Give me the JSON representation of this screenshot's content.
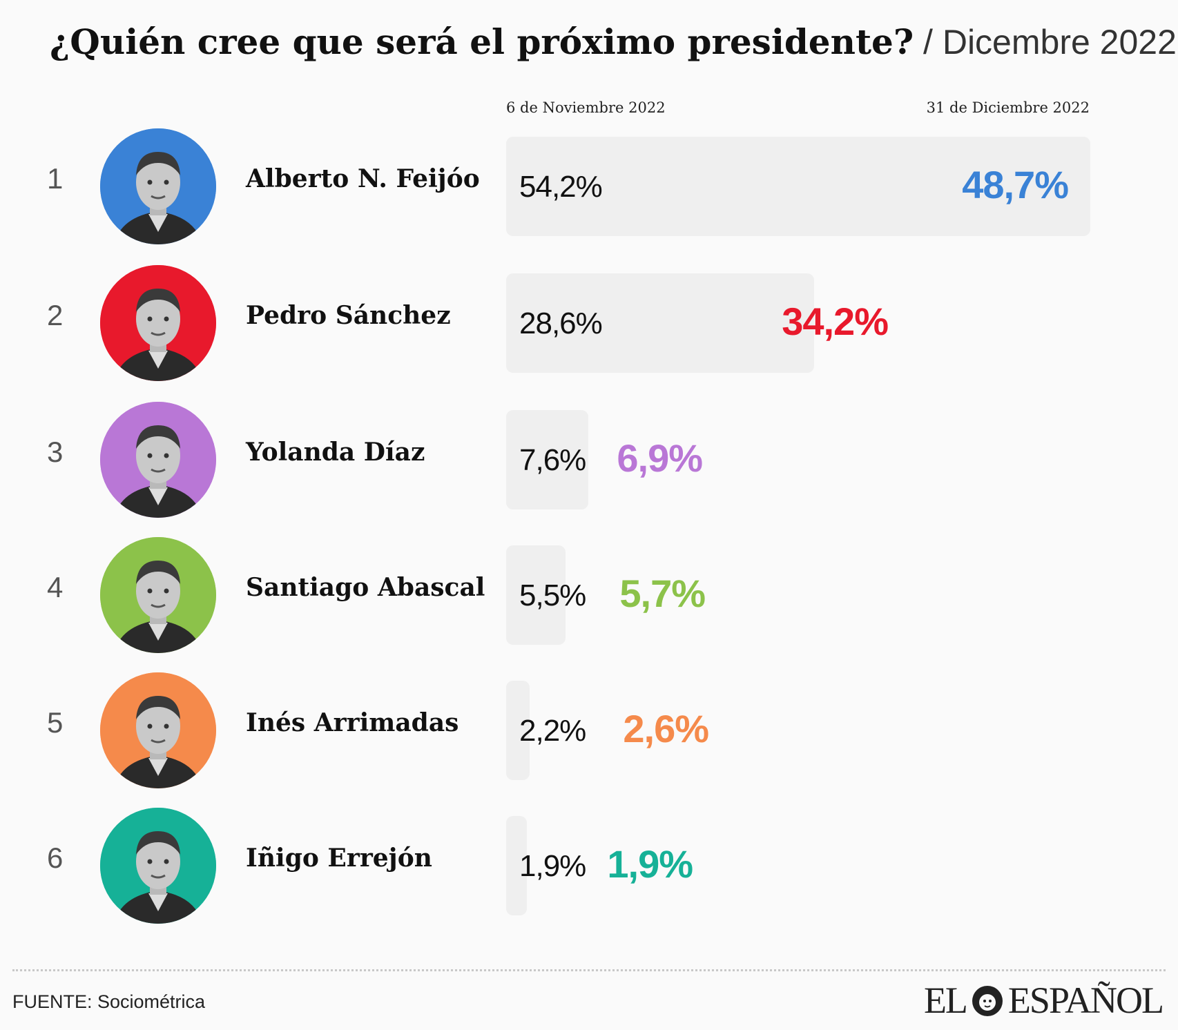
{
  "title": {
    "main": "¿Quién cree que será el próximo presidente?",
    "sub": " / Dicembre 2022"
  },
  "columns": {
    "old": "6 de Noviembre 2022",
    "new": "31 de Diciembre 2022"
  },
  "chart_data": {
    "type": "bar",
    "title": "¿Quién cree que será el próximo presidente?",
    "subtitle": "Dicembre 2022",
    "categories": [
      "Alberto N. Feijóo",
      "Pedro Sánchez",
      "Yolanda Díaz",
      "Santiago Abascal",
      "Inés Arrimadas",
      "Iñigo Errejón"
    ],
    "series": [
      {
        "name": "6 de Noviembre 2022",
        "values": [
          54.2,
          28.6,
          7.6,
          5.5,
          2.2,
          1.9
        ]
      },
      {
        "name": "31 de Diciembre 2022",
        "values": [
          48.7,
          34.2,
          6.9,
          5.7,
          2.6,
          1.9
        ]
      }
    ],
    "xlim": [
      0,
      54.2
    ],
    "grid": false
  },
  "rows": [
    {
      "rank": "1",
      "name": "Alberto N. Feijóo",
      "old": "54,2%",
      "new": "48,7%",
      "old_value": 54.2,
      "new_value": 48.7,
      "color": "#3a82d6",
      "avatar_icon": "portrait-icon"
    },
    {
      "rank": "2",
      "name": "Pedro Sánchez",
      "old": "28,6%",
      "new": "34,2%",
      "old_value": 28.6,
      "new_value": 34.2,
      "color": "#e8192c",
      "avatar_icon": "portrait-icon"
    },
    {
      "rank": "3",
      "name": "Yolanda Díaz",
      "old": "7,6%",
      "new": "6,9%",
      "old_value": 7.6,
      "new_value": 6.9,
      "color": "#b977d6",
      "avatar_icon": "portrait-icon"
    },
    {
      "rank": "4",
      "name": "Santiago Abascal",
      "old": "5,5%",
      "new": "5,7%",
      "old_value": 5.5,
      "new_value": 5.7,
      "color": "#8cc24a",
      "avatar_icon": "portrait-icon"
    },
    {
      "rank": "5",
      "name": "Inés Arrimadas",
      "old": "2,2%",
      "new": "2,6%",
      "old_value": 2.2,
      "new_value": 2.6,
      "color": "#f58a4b",
      "avatar_icon": "portrait-icon"
    },
    {
      "rank": "6",
      "name": "Iñigo Errejón",
      "old": "1,9%",
      "new": "1,9%",
      "old_value": 1.9,
      "new_value": 1.9,
      "color": "#16b197",
      "avatar_icon": "portrait-icon"
    }
  ],
  "footer": {
    "source": "FUENTE: Sociométrica",
    "logo_left": "EL",
    "logo_right": "ESPAÑOL",
    "logo_icon": "lion-icon"
  }
}
